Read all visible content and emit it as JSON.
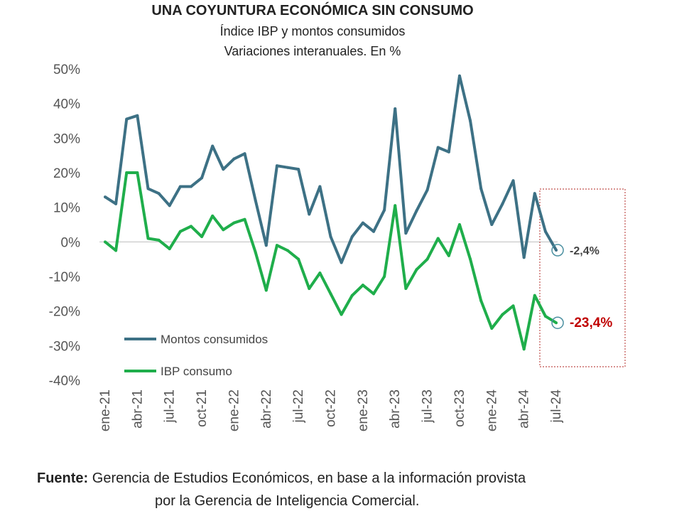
{
  "header": {
    "title": "UNA COYUNTURA ECONÓMICA SIN CONSUMO",
    "subtitle1": "Índice IBP y montos consumidos",
    "subtitle2": "Variaciones interanuales. En %"
  },
  "footer": {
    "label": "Fuente:",
    "text1": " Gerencia de Estudios Económicos, en base a la información provista",
    "text2": "por la Gerencia de Inteligencia Comercial."
  },
  "chart_data": {
    "type": "line",
    "title": "UNA COYUNTURA ECONÓMICA SIN CONSUMO",
    "ylim": [
      -40,
      50
    ],
    "yticks": [
      50,
      40,
      30,
      20,
      10,
      0,
      -10,
      -20,
      -30,
      -40
    ],
    "ytick_labels": [
      "50%",
      "40%",
      "30%",
      "20%",
      "10%",
      "0%",
      "-10%",
      "-20%",
      "-30%",
      "-40%"
    ],
    "xtick_labels": [
      "ene-21",
      "abr-21",
      "jul-21",
      "oct-21",
      "ene-22",
      "abr-22",
      "jul-22",
      "oct-22",
      "ene-23",
      "abr-23",
      "jul-23",
      "oct-23",
      "ene-24",
      "abr-24",
      "jul-24"
    ],
    "legend_position": "bottom-left",
    "series": [
      {
        "name": "Montos consumidos",
        "color": "#3d7185",
        "values": [
          13,
          11,
          35.5,
          36.5,
          15.4,
          14,
          10.5,
          16,
          16,
          18.5,
          27.7,
          21,
          24,
          25.5,
          12,
          -1,
          22,
          21.5,
          21,
          8,
          16,
          1.5,
          -6,
          1.5,
          5.5,
          3,
          9.2,
          38.5,
          2.5,
          9,
          15,
          27.3,
          26,
          48,
          35,
          15.4,
          5,
          11,
          17.7,
          -4.5,
          14,
          3,
          -2.4
        ]
      },
      {
        "name": "IBP consumo",
        "color": "#1fae4b",
        "values": [
          0,
          -2.5,
          20,
          20,
          1,
          0.5,
          -2,
          3,
          4.5,
          1.5,
          7.5,
          3.5,
          5.5,
          6.5,
          -3,
          -14,
          -1,
          -2.5,
          -5,
          -13.5,
          -9,
          -15,
          -21,
          -15.5,
          -12.5,
          -15,
          -10,
          10.5,
          -13.5,
          -8,
          -5,
          1,
          -4,
          5,
          -5,
          -17,
          -25,
          -21,
          -18.5,
          -31,
          -15.5,
          -21.5,
          -23.4
        ]
      }
    ],
    "annotations": [
      {
        "series": "Montos consumidos",
        "text": "-2,4%",
        "color": "#444444"
      },
      {
        "series": "IBP consumo",
        "text": "-23,4%",
        "color": "#c00000"
      }
    ]
  }
}
